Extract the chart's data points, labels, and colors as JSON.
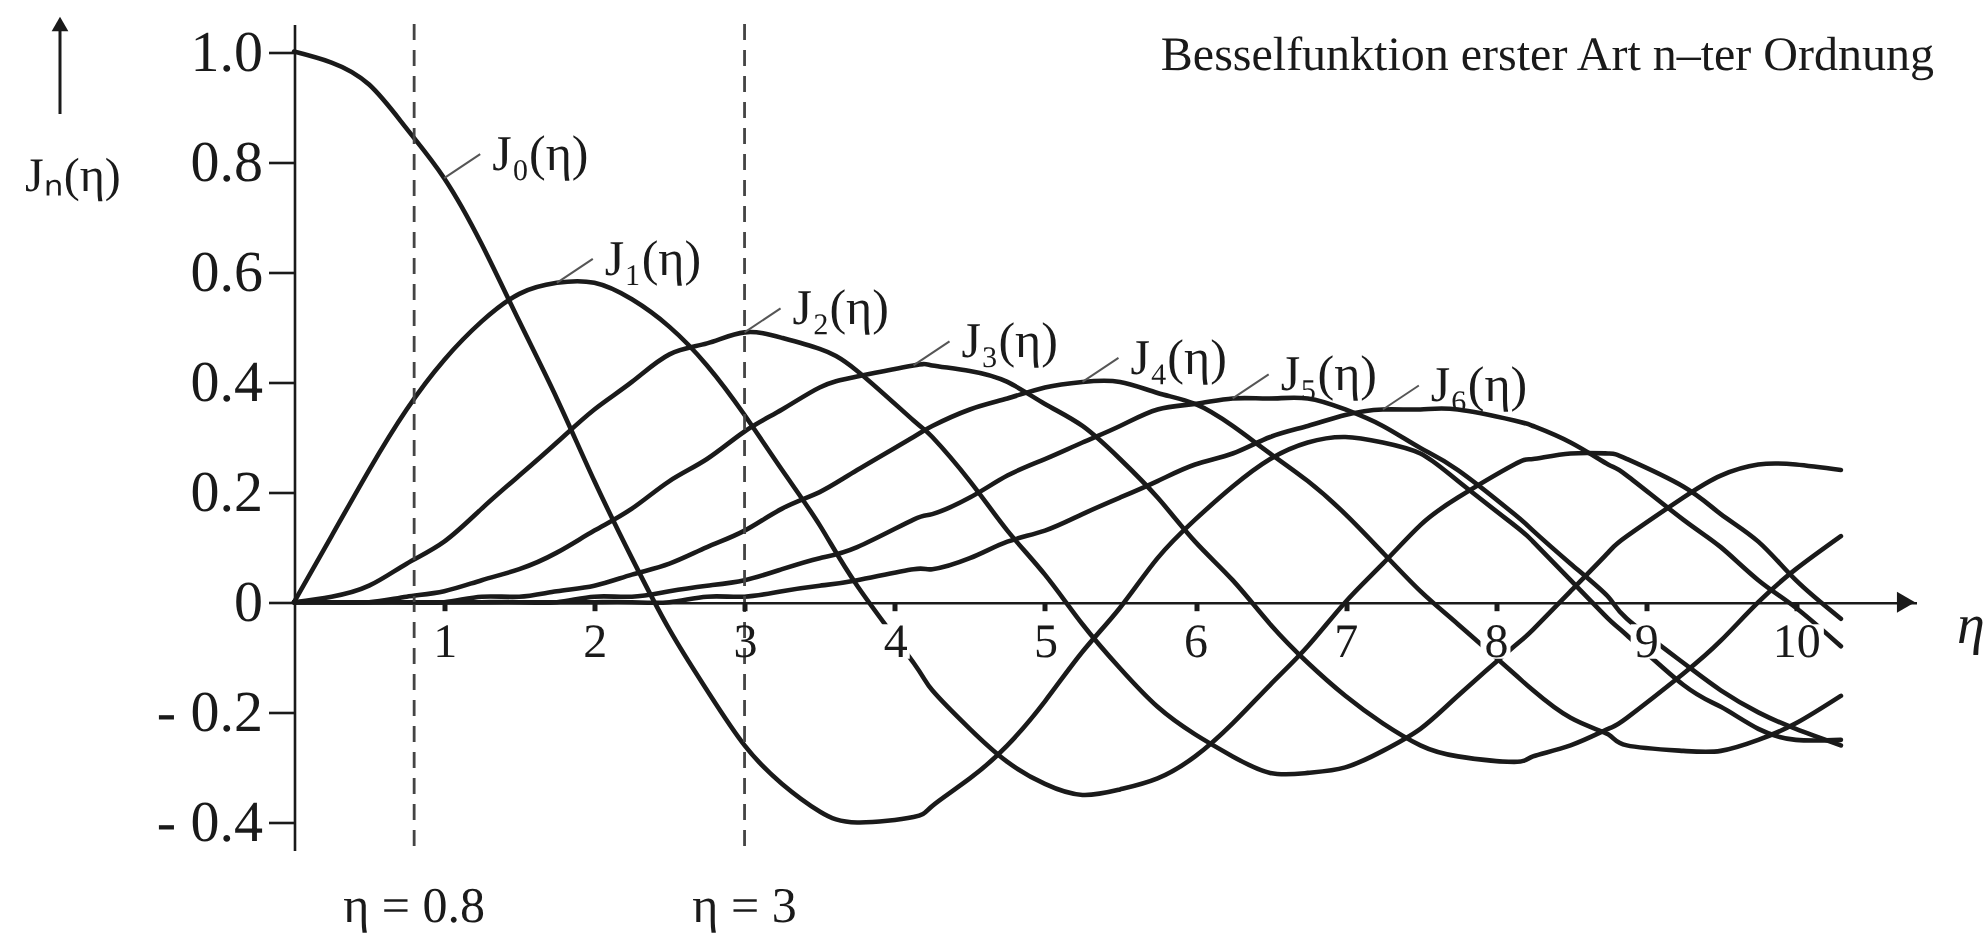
{
  "chart_data": {
    "type": "line",
    "title": "Besselfunktion erster Art n–ter Ordnung",
    "xlabel": "η",
    "ylabel": "Jₙ(η)",
    "x": [
      0,
      0.25,
      0.5,
      0.75,
      1,
      1.25,
      1.5,
      1.75,
      2,
      2.25,
      2.5,
      2.75,
      3,
      3.25,
      3.5,
      3.75,
      4.125,
      4.25,
      4.5,
      4.75,
      5,
      5.25,
      5.5,
      5.75,
      6,
      6.25,
      6.5,
      6.75,
      7,
      7.25,
      7.5,
      7.75,
      8.125,
      8.25,
      8.5,
      8.75,
      8.875,
      9.25,
      9.5,
      9.75,
      10,
      10.3
    ],
    "series": [
      {
        "name": "J₀(η)",
        "color": "#1a1a1a",
        "values": [
          1,
          0.98,
          0.94,
          0.86,
          0.77,
          0.65,
          0.51,
          0.37,
          0.22,
          0.08,
          -0.05,
          -0.16,
          -0.26,
          -0.33,
          -0.38,
          -0.4,
          -0.39,
          -0.37,
          -0.32,
          -0.26,
          -0.18,
          -0.09,
          -0.01,
          0.08,
          0.15,
          0.21,
          0.26,
          0.29,
          0.3,
          0.29,
          0.27,
          0.22,
          0.14,
          0.11,
          0.04,
          -0.03,
          -0.06,
          -0.15,
          -0.19,
          -0.23,
          -0.25,
          -0.25
        ]
      },
      {
        "name": "J₁(η)",
        "color": "#1a1a1a",
        "values": [
          0,
          0.12,
          0.24,
          0.35,
          0.44,
          0.51,
          0.56,
          0.58,
          0.58,
          0.55,
          0.5,
          0.43,
          0.34,
          0.24,
          0.14,
          0.03,
          -0.11,
          -0.16,
          -0.23,
          -0.29,
          -0.33,
          -0.35,
          -0.34,
          -0.32,
          -0.28,
          -0.22,
          -0.15,
          -0.08,
          0,
          0.07,
          0.14,
          0.19,
          0.25,
          0.26,
          0.27,
          0.27,
          0.26,
          0.21,
          0.16,
          0.11,
          0.04,
          -0.03
        ]
      },
      {
        "name": "J₂(η)",
        "color": "#1a1a1a",
        "values": [
          0,
          0.01,
          0.03,
          0.07,
          0.11,
          0.17,
          0.23,
          0.29,
          0.35,
          0.4,
          0.45,
          0.47,
          0.49,
          0.48,
          0.46,
          0.42,
          0.33,
          0.3,
          0.22,
          0.13,
          0.05,
          -0.04,
          -0.12,
          -0.19,
          -0.24,
          -0.28,
          -0.31,
          -0.31,
          -0.3,
          -0.27,
          -0.23,
          -0.17,
          -0.08,
          -0.05,
          0.02,
          0.09,
          0.12,
          0.19,
          0.23,
          0.25,
          0.25,
          0.24
        ]
      },
      {
        "name": "J₃(η)",
        "color": "#1a1a1a",
        "values": [
          0,
          0,
          0,
          0.01,
          0.02,
          0.04,
          0.06,
          0.09,
          0.13,
          0.17,
          0.22,
          0.26,
          0.31,
          0.35,
          0.39,
          0.41,
          0.43,
          0.43,
          0.42,
          0.4,
          0.36,
          0.32,
          0.26,
          0.19,
          0.11,
          0.04,
          -0.04,
          -0.11,
          -0.17,
          -0.22,
          -0.26,
          -0.28,
          -0.29,
          -0.28,
          -0.26,
          -0.23,
          -0.21,
          -0.13,
          -0.07,
          0,
          0.06,
          0.12
        ]
      },
      {
        "name": "J₄(η)",
        "color": "#1a1a1a",
        "values": [
          0,
          0,
          0,
          0,
          0,
          0.01,
          0.01,
          0.02,
          0.03,
          0.05,
          0.07,
          0.1,
          0.13,
          0.17,
          0.2,
          0.24,
          0.3,
          0.32,
          0.35,
          0.37,
          0.39,
          0.4,
          0.4,
          0.38,
          0.36,
          0.32,
          0.27,
          0.22,
          0.16,
          0.09,
          0.02,
          -0.04,
          -0.13,
          -0.16,
          -0.21,
          -0.24,
          -0.26,
          -0.27,
          -0.27,
          -0.25,
          -0.22,
          -0.17
        ]
      },
      {
        "name": "J₅(η)",
        "color": "#1a1a1a",
        "values": [
          0,
          0,
          0,
          0,
          0,
          0,
          0,
          0,
          0.01,
          0.01,
          0.02,
          0.03,
          0.04,
          0.06,
          0.08,
          0.1,
          0.15,
          0.16,
          0.19,
          0.23,
          0.26,
          0.29,
          0.32,
          0.35,
          0.36,
          0.37,
          0.37,
          0.37,
          0.35,
          0.32,
          0.28,
          0.24,
          0.16,
          0.13,
          0.07,
          0.01,
          -0.03,
          -0.11,
          -0.16,
          -0.2,
          -0.23,
          -0.26
        ]
      },
      {
        "name": "J₆(η)",
        "color": "#1a1a1a",
        "values": [
          0,
          0,
          0,
          0,
          0,
          0,
          0,
          0,
          0,
          0,
          0,
          0.01,
          0.01,
          0.02,
          0.03,
          0.04,
          0.06,
          0.06,
          0.08,
          0.11,
          0.13,
          0.16,
          0.19,
          0.22,
          0.25,
          0.27,
          0.3,
          0.32,
          0.34,
          0.35,
          0.35,
          0.35,
          0.33,
          0.32,
          0.29,
          0.25,
          0.23,
          0.15,
          0.1,
          0.04,
          -0.01,
          -0.08
        ]
      }
    ],
    "xlim": [
      0,
      10.8
    ],
    "ylim": [
      -0.45,
      1.05
    ],
    "xticks": [
      1,
      2,
      3,
      4,
      5,
      6,
      7,
      8,
      9,
      10
    ],
    "yticks": [
      {
        "value": -0.4,
        "label": "- 0.4"
      },
      {
        "value": -0.2,
        "label": "- 0.2"
      },
      0,
      0.2,
      0.4,
      0.6,
      0.8,
      {
        "value": 1,
        "label": "1.0"
      }
    ],
    "ref_lines": [
      {
        "axis": "x",
        "value": 0.8,
        "label": "η = 0.8",
        "line_style": "dashed",
        "color": "#444444"
      },
      {
        "axis": "x",
        "value": 3,
        "label": "η = 3",
        "line_style": "dashed",
        "color": "#444444"
      }
    ],
    "line_style": "solid"
  }
}
